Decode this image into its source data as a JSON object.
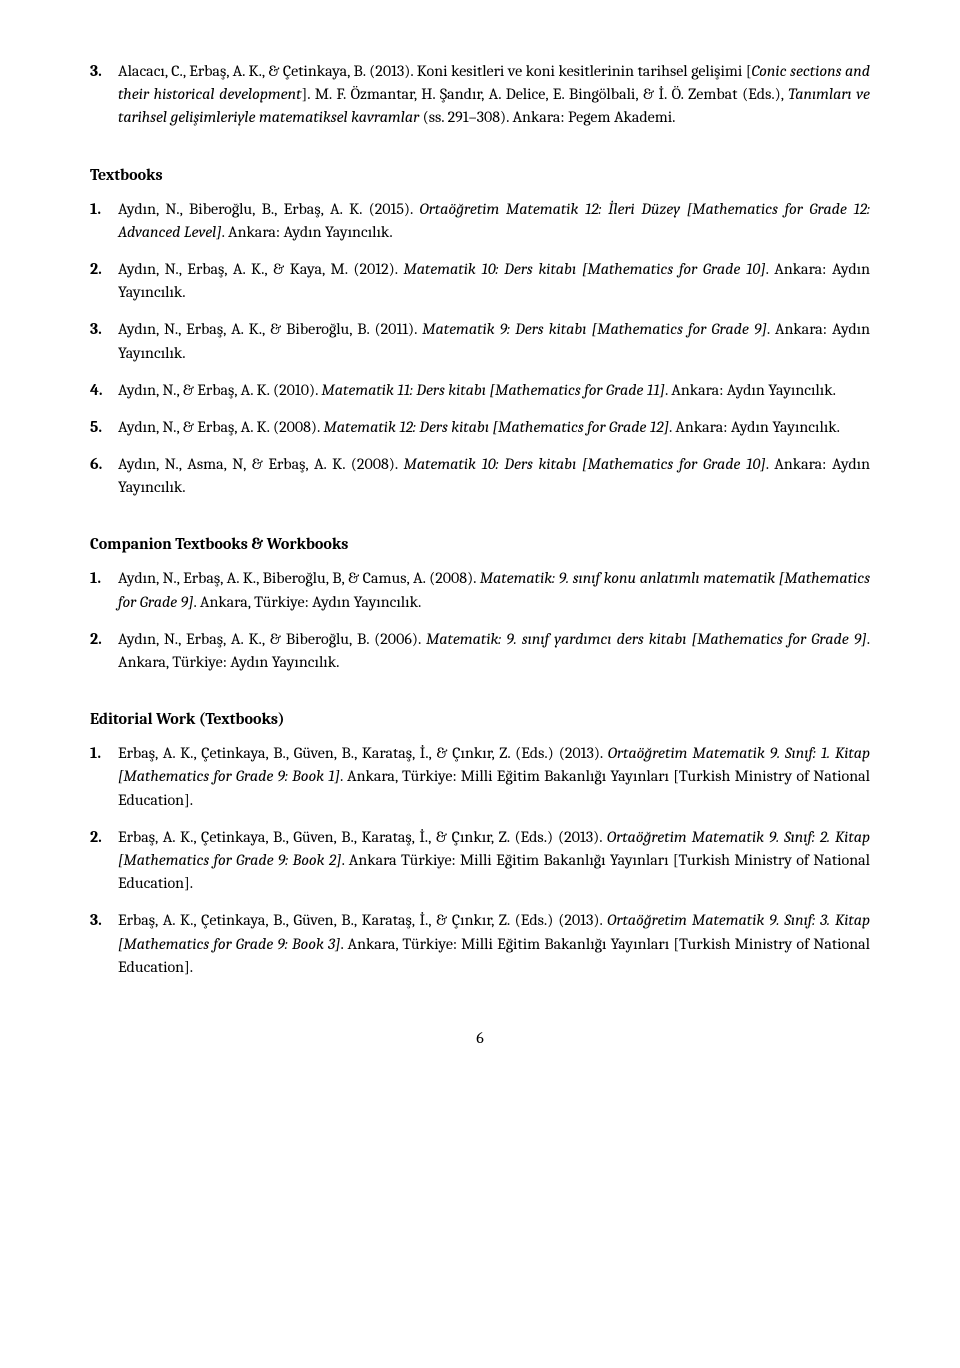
{
  "topEntry": {
    "num": "3.",
    "prefix": "Alacacı, C., Erbaş, A. K., & Çetinkaya, B. (2013). Koni kesitleri ve koni kesitlerinin tarihsel gelişimi [",
    "italic": "Conic sections and their historical development",
    "suffix": "]. M. F. Özmantar, H. Şandır, A. Delice, E. Bingölbali, & İ. Ö. Zembat (Eds.), ",
    "italic2": "Tanımları ve tarihsel gelişimleriyle matematiksel kavramlar",
    "suffix2": " (ss. 291–308). Ankara: Pegem Akademi."
  },
  "headings": {
    "textbooks": "Textbooks",
    "companion": "Companion Textbooks & Workbooks",
    "editorial": "Editorial Work (Textbooks)"
  },
  "textbooks": [
    {
      "num": "1.",
      "prefix": "Aydın, N., Biberoğlu, B., Erbaş, A. K. (2015). ",
      "italic": "Ortaöğretim Matematik 12: İleri Düzey [Mathematics for Grade 12: Advanced Level]",
      "suffix": ". Ankara: Aydın Yayıncılık."
    },
    {
      "num": "2.",
      "prefix": "Aydın, N., Erbaş, A. K., & Kaya, M. (2012). ",
      "italic": "Matematik 10: Ders kitabı [Mathematics for Grade 10]",
      "suffix": ". Ankara: Aydın Yayıncılık."
    },
    {
      "num": "3.",
      "prefix": "Aydın, N., Erbaş, A. K., & Biberoğlu, B. (2011). ",
      "italic": "Matematik 9: Ders kitabı [Mathematics for Grade 9]",
      "suffix": ". Ankara: Aydın Yayıncılık."
    },
    {
      "num": "4.",
      "prefix": "Aydın, N., & Erbaş, A. K. (2010). ",
      "italic": "Matematik 11: Ders kitabı [Mathematics for Grade 11]",
      "suffix": ". Ankara: Aydın Yayıncılık."
    },
    {
      "num": "5.",
      "prefix": "Aydın, N., & Erbaş, A. K. (2008). ",
      "italic": "Matematik 12: Ders kitabı [Mathematics for Grade 12]",
      "suffix": ". Ankara: Aydın Yayıncılık."
    },
    {
      "num": "6.",
      "prefix": "Aydın, N., Asma, N, & Erbaş, A. K. (2008). ",
      "italic": "Matematik 10: Ders kitabı [Mathematics for Grade 10]",
      "suffix": ". Ankara: Aydın Yayıncılık."
    }
  ],
  "companion": [
    {
      "num": "1.",
      "prefix": "Aydın, N., Erbaş, A. K., Biberoğlu, B, & Camus, A. (2008). ",
      "italic": "Matematik: 9. sınıf konu anlatımlı matematik [Mathematics for Grade 9]",
      "suffix": ". Ankara, Türkiye: Aydın Yayıncılık."
    },
    {
      "num": "2.",
      "prefix": "Aydın, N., Erbaş, A. K., & Biberoğlu, B. (2006). ",
      "italic": "Matematik: 9. sınıf yardımcı ders kitabı [Mathematics for Grade 9]",
      "suffix": ". Ankara, Türkiye: Aydın Yayıncılık."
    }
  ],
  "editorial": [
    {
      "num": "1.",
      "prefix": "Erbaş, A. K., Çetinkaya, B., Güven, B., Karataş, İ., & Çınkır, Z. (Eds.) (2013). ",
      "italic": "Ortaöğretim Matematik 9. Sınıf: 1. Kitap [Mathematics for Grade 9: Book 1]",
      "suffix": ". Ankara, Türkiye: Milli Eğitim Bakanlığı Yayınları [Turkish Ministry of National Education]."
    },
    {
      "num": "2.",
      "prefix": "Erbaş, A. K., Çetinkaya, B., Güven, B., Karataş, İ., & Çınkır, Z. (Eds.) (2013). ",
      "italic": "Ortaöğretim Matematik 9. Sınıf: 2. Kitap [Mathematics for Grade 9: Book 2]",
      "suffix": ". Ankara Türkiye: Milli Eğitim Bakanlığı Yayınları [Turkish Ministry of National Education]."
    },
    {
      "num": "3.",
      "prefix": "Erbaş, A. K., Çetinkaya, B., Güven, B., Karataş, İ., & Çınkır, Z. (Eds.) (2013). ",
      "italic": "Ortaöğretim Matematik 9. Sınıf: 3. Kitap [Mathematics for Grade 9: Book 3]",
      "suffix": ". Ankara, Türkiye: Milli Eğitim Bakanlığı Yayınları [Turkish Ministry of National Education]."
    }
  ],
  "pageNumber": "6"
}
